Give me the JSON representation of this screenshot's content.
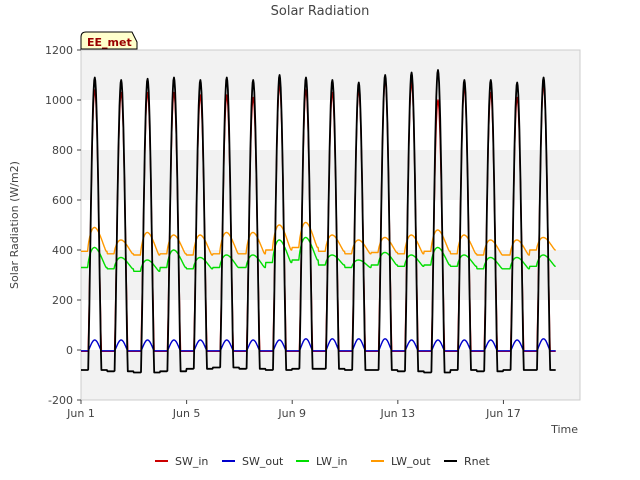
{
  "chart_data": {
    "type": "line",
    "title": "Solar Radiation",
    "xlabel": "Time",
    "ylabel": "Solar Radiation (W/m2)",
    "site_label": "EE_met",
    "ylim": [
      -200,
      1200
    ],
    "yticks": [
      -200,
      0,
      200,
      400,
      600,
      800,
      1000,
      1200
    ],
    "xlim_days": [
      0,
      18.9
    ],
    "xticks": [
      {
        "day": 0,
        "label": "Jun 1"
      },
      {
        "day": 4,
        "label": "Jun 5"
      },
      {
        "day": 8,
        "label": "Jun 9"
      },
      {
        "day": 12,
        "label": "Jun 13"
      },
      {
        "day": 16,
        "label": "Jun 17"
      }
    ],
    "grid": "horizontal alternating bands",
    "legend_position": "bottom",
    "days_start": "Jun 1",
    "days": 18,
    "series": [
      {
        "name": "SW_in",
        "color": "#cc0000",
        "daily_peak": [
          1040,
          1030,
          1030,
          1030,
          1020,
          1020,
          1010,
          1060,
          1040,
          1030,
          1040,
          1080,
          1070,
          1000,
          1050,
          1030,
          1010,
          1060
        ],
        "night": -5
      },
      {
        "name": "SW_out",
        "color": "#0000cc",
        "daily_peak": [
          40,
          40,
          40,
          40,
          40,
          40,
          40,
          40,
          45,
          45,
          45,
          45,
          40,
          40,
          40,
          40,
          40,
          45
        ],
        "night": -3
      },
      {
        "name": "LW_in",
        "color": "#00dd00",
        "daily_peak": [
          410,
          370,
          360,
          400,
          370,
          380,
          380,
          440,
          450,
          380,
          360,
          390,
          380,
          410,
          380,
          370,
          370,
          380
        ],
        "night": [
          330,
          325,
          315,
          330,
          325,
          330,
          330,
          350,
          360,
          340,
          330,
          340,
          335,
          340,
          335,
          325,
          325,
          335
        ]
      },
      {
        "name": "LW_out",
        "color": "#ff9900",
        "daily_peak": [
          490,
          440,
          470,
          460,
          460,
          470,
          470,
          500,
          510,
          460,
          440,
          450,
          460,
          480,
          460,
          440,
          440,
          450
        ],
        "night": [
          395,
          385,
          380,
          385,
          380,
          385,
          385,
          400,
          410,
          395,
          385,
          390,
          385,
          395,
          385,
          380,
          380,
          400
        ]
      },
      {
        "name": "Rnet",
        "color": "#000000",
        "daily_peak": [
          1090,
          1080,
          1085,
          1090,
          1080,
          1090,
          1080,
          1100,
          1090,
          1080,
          1070,
          1100,
          1110,
          1120,
          1080,
          1080,
          1070,
          1090
        ],
        "night": [
          -80,
          -85,
          -90,
          -85,
          -75,
          -70,
          -75,
          -80,
          -75,
          -75,
          -80,
          -80,
          -85,
          -90,
          -80,
          -85,
          -80,
          -80
        ]
      }
    ]
  }
}
